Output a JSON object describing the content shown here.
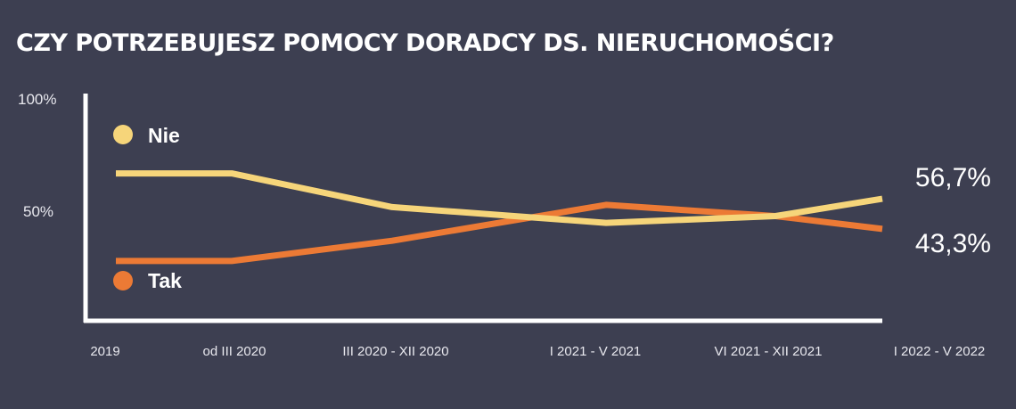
{
  "chart_data": {
    "type": "line",
    "title": "CZY POTRZEBUJESZ POMOCY DORADCY DS. NIERUCHOMOŚCI?",
    "categories": [
      "2019",
      "od III 2020",
      "III 2020 - XII 2020",
      "I 2021 - V 2021",
      "VI 2021 - XII 2021",
      "I 2022 - V 2022"
    ],
    "y_ticks": [
      "100%",
      "50%"
    ],
    "ylim": [
      0,
      100
    ],
    "grid": false,
    "series": [
      {
        "name": "Nie",
        "color": "#f6d57a",
        "values": [
          68,
          68,
          53,
          46,
          49,
          56.7
        ],
        "end_label": "56,7%"
      },
      {
        "name": "Tak",
        "color": "#ec7a35",
        "values": [
          29,
          29,
          38,
          54,
          49,
          43.3
        ],
        "end_label": "43,3%"
      }
    ],
    "legend_placement": "left"
  }
}
